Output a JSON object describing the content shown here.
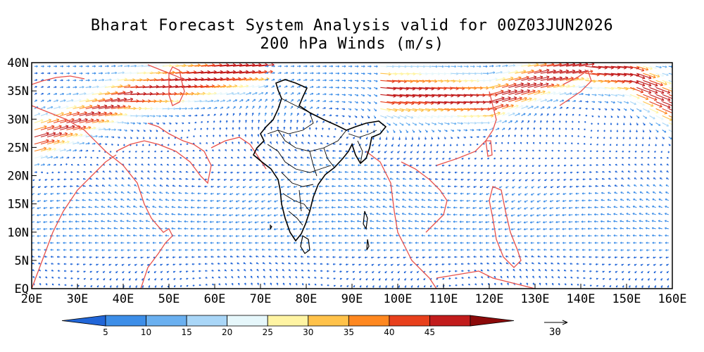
{
  "title": {
    "line1": "Bharat Forecast System Analysis valid for 00Z03JUN2026",
    "line2": "200 hPa Winds (m/s)"
  },
  "map": {
    "lon_range": [
      20,
      160
    ],
    "lat_range": [
      0,
      40
    ],
    "lon_ticks": [
      "20E",
      "30E",
      "40E",
      "50E",
      "60E",
      "70E",
      "80E",
      "90E",
      "100E",
      "110E",
      "120E",
      "130E",
      "140E",
      "150E",
      "160E"
    ],
    "lat_ticks": [
      "EQ",
      "5N",
      "10N",
      "15N",
      "20N",
      "25N",
      "30N",
      "35N",
      "40N"
    ]
  },
  "colorbar": {
    "levels": [
      "5",
      "10",
      "15",
      "20",
      "25",
      "30",
      "35",
      "40",
      "45"
    ],
    "colors": [
      "#2166d8",
      "#3d8ee8",
      "#6ab0f0",
      "#a9d6f7",
      "#e6f7fb",
      "#fff4a3",
      "#ffc24a",
      "#ff8820",
      "#e8401c",
      "#c21c1c",
      "#8c0a0a"
    ]
  },
  "reference_vector": {
    "label": "30"
  },
  "jets": [
    {
      "name": "subtropical-jet-west",
      "lon_start": 20,
      "lon_end": 70,
      "lat_path": [
        [
          20,
          26
        ],
        [
          30,
          30
        ],
        [
          40,
          34
        ],
        [
          50,
          36
        ],
        [
          60,
          38
        ],
        [
          70,
          40
        ]
      ],
      "peak_speed": 45
    },
    {
      "name": "subtropical-jet-east",
      "lon_start": 95,
      "lon_end": 160,
      "lat_path": [
        [
          95,
          35
        ],
        [
          110,
          34
        ],
        [
          120,
          33
        ],
        [
          130,
          37
        ],
        [
          140,
          40
        ],
        [
          150,
          38
        ],
        [
          160,
          32
        ]
      ],
      "peak_speed": 45
    }
  ]
}
